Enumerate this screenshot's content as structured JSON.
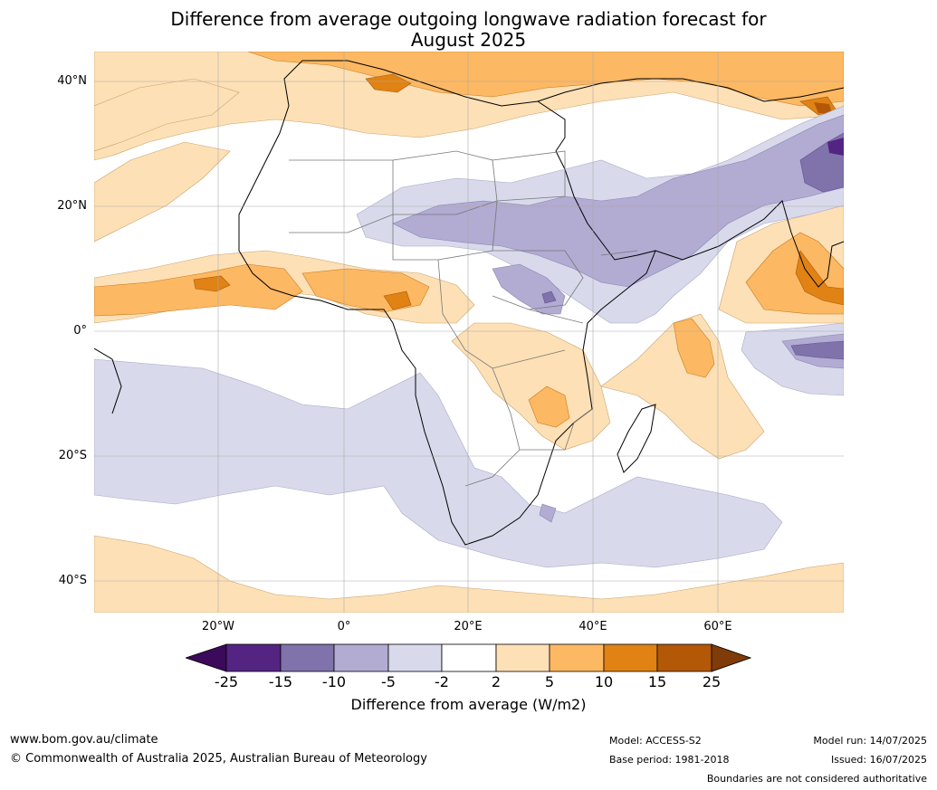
{
  "title": {
    "line1": "Difference from average outgoing longwave radiation forecast for",
    "line2": "August 2025"
  },
  "map": {
    "lat_labels": [
      "40°N",
      "20°N",
      "0°",
      "20°S",
      "40°S"
    ],
    "lon_labels": [
      "20°W",
      "0°",
      "20°E",
      "40°E",
      "60°E"
    ],
    "gridlines": true
  },
  "colorbar": {
    "ticks": [
      "-25",
      "-15",
      "-10",
      "-5",
      "-2",
      "2",
      "5",
      "10",
      "15",
      "25"
    ],
    "colors": {
      "below": "#3b0a5a",
      "n25_n15": "#542483",
      "n15_n10": "#8073ac",
      "n10_n5": "#b2abd2",
      "n5_n2": "#d8daeb",
      "n2_p2": "#ffffff",
      "p2_p5": "#fee0b6",
      "p5_p10": "#fdb863",
      "p10_p15": "#e08214",
      "p15_p25": "#b35806",
      "above": "#7f3b08"
    },
    "label": "Difference from average (W/m2)"
  },
  "footer": {
    "url": "www.bom.gov.au/climate",
    "copyright": "© Commonwealth of Australia 2025, Australian Bureau of Meteorology",
    "model": "Model: ACCESS-S2",
    "base_period": "Base period: 1981-2018",
    "model_run": "Model run: 14/07/2025",
    "issued": "Issued: 16/07/2025",
    "disclaimer": "Boundaries are not considered authoritative"
  }
}
